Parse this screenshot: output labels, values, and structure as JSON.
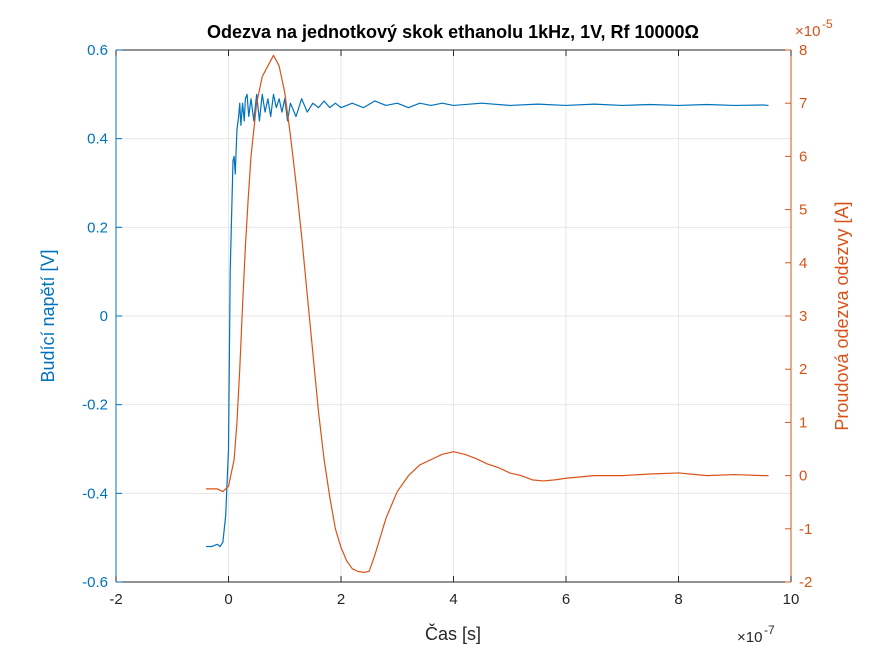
{
  "chart_data": {
    "type": "line",
    "title": "Odezva na jednotkový skok ethanolu 1kHz, 1V, Rf 10000Ω",
    "xlabel": "Čas [s]",
    "ylabel_left": "Budící napětí [V]",
    "ylabel_right": "Proudová odezva odezvy [A]",
    "x_exponent_label": "×10",
    "x_exponent_power": "-7",
    "right_exponent_label": "×10",
    "right_exponent_power": "-5",
    "xlim": [
      -2,
      10
    ],
    "ylim_left": [
      -0.6,
      0.6
    ],
    "ylim_right": [
      -2,
      8
    ],
    "x_ticks": [
      -2,
      0,
      2,
      4,
      6,
      8,
      10
    ],
    "x_tick_labels": [
      "-2",
      "0",
      "2",
      "4",
      "6",
      "8",
      "10"
    ],
    "left_ticks": [
      -0.6,
      -0.4,
      -0.2,
      0,
      0.2,
      0.4,
      0.6
    ],
    "left_tick_labels": [
      "-0.6",
      "-0.4",
      "-0.2",
      "0",
      "0.2",
      "0.4",
      "0.6"
    ],
    "right_ticks": [
      -2,
      -1,
      0,
      1,
      2,
      3,
      4,
      5,
      6,
      7,
      8
    ],
    "right_tick_labels": [
      "-2",
      "-1",
      "0",
      "1",
      "2",
      "3",
      "4",
      "5",
      "6",
      "7",
      "8"
    ],
    "grid": true,
    "colors": {
      "left": "#0072BD",
      "right": "#D95319",
      "grid": "#e6e6e6",
      "axis": "#262626"
    },
    "series": [
      {
        "axis": "left",
        "x": [
          -0.4,
          -0.3,
          -0.2,
          -0.15,
          -0.1,
          -0.05,
          0.0,
          0.03,
          0.06,
          0.08,
          0.1,
          0.12,
          0.15,
          0.18,
          0.2,
          0.22,
          0.25,
          0.28,
          0.3,
          0.33,
          0.36,
          0.4,
          0.45,
          0.5,
          0.55,
          0.6,
          0.65,
          0.7,
          0.75,
          0.8,
          0.85,
          0.9,
          0.95,
          1.0,
          1.05,
          1.1,
          1.2,
          1.3,
          1.4,
          1.5,
          1.6,
          1.7,
          1.8,
          1.9,
          2.0,
          2.2,
          2.4,
          2.6,
          2.8,
          3.0,
          3.2,
          3.4,
          3.6,
          3.8,
          4.0,
          4.5,
          5.0,
          5.5,
          6.0,
          6.5,
          7.0,
          7.5,
          8.0,
          8.5,
          9.0,
          9.5,
          9.6
        ],
        "y": [
          -0.52,
          -0.52,
          -0.515,
          -0.52,
          -0.51,
          -0.45,
          -0.3,
          0.1,
          0.25,
          0.35,
          0.36,
          0.32,
          0.42,
          0.45,
          0.48,
          0.43,
          0.48,
          0.44,
          0.49,
          0.5,
          0.45,
          0.49,
          0.44,
          0.5,
          0.44,
          0.5,
          0.46,
          0.49,
          0.45,
          0.5,
          0.47,
          0.49,
          0.46,
          0.49,
          0.44,
          0.48,
          0.45,
          0.49,
          0.46,
          0.48,
          0.47,
          0.485,
          0.47,
          0.48,
          0.47,
          0.48,
          0.47,
          0.485,
          0.475,
          0.48,
          0.47,
          0.48,
          0.475,
          0.48,
          0.475,
          0.48,
          0.475,
          0.478,
          0.475,
          0.478,
          0.475,
          0.477,
          0.475,
          0.477,
          0.475,
          0.476,
          0.475
        ]
      },
      {
        "axis": "right",
        "x": [
          -0.4,
          -0.3,
          -0.2,
          -0.1,
          0.0,
          0.1,
          0.15,
          0.2,
          0.25,
          0.3,
          0.35,
          0.4,
          0.5,
          0.6,
          0.7,
          0.8,
          0.9,
          1.0,
          1.1,
          1.2,
          1.3,
          1.4,
          1.5,
          1.6,
          1.7,
          1.8,
          1.9,
          2.0,
          2.1,
          2.2,
          2.3,
          2.4,
          2.5,
          2.6,
          2.8,
          3.0,
          3.2,
          3.4,
          3.6,
          3.8,
          4.0,
          4.2,
          4.4,
          4.6,
          4.8,
          5.0,
          5.2,
          5.4,
          5.6,
          5.8,
          6.0,
          6.5,
          7.0,
          7.5,
          8.0,
          8.5,
          9.0,
          9.5,
          9.6
        ],
        "y": [
          -0.25,
          -0.25,
          -0.25,
          -0.3,
          -0.2,
          0.3,
          1.0,
          2.0,
          3.2,
          4.3,
          5.2,
          6.0,
          7.0,
          7.5,
          7.7,
          7.9,
          7.7,
          7.2,
          6.4,
          5.5,
          4.5,
          3.4,
          2.3,
          1.2,
          0.3,
          -0.4,
          -1.0,
          -1.35,
          -1.6,
          -1.75,
          -1.8,
          -1.82,
          -1.8,
          -1.5,
          -0.8,
          -0.3,
          0.0,
          0.2,
          0.3,
          0.4,
          0.45,
          0.4,
          0.32,
          0.22,
          0.15,
          0.05,
          0.0,
          -0.08,
          -0.1,
          -0.08,
          -0.05,
          0.0,
          0.0,
          0.03,
          0.05,
          0.0,
          0.02,
          0.0,
          0.0
        ]
      }
    ]
  }
}
